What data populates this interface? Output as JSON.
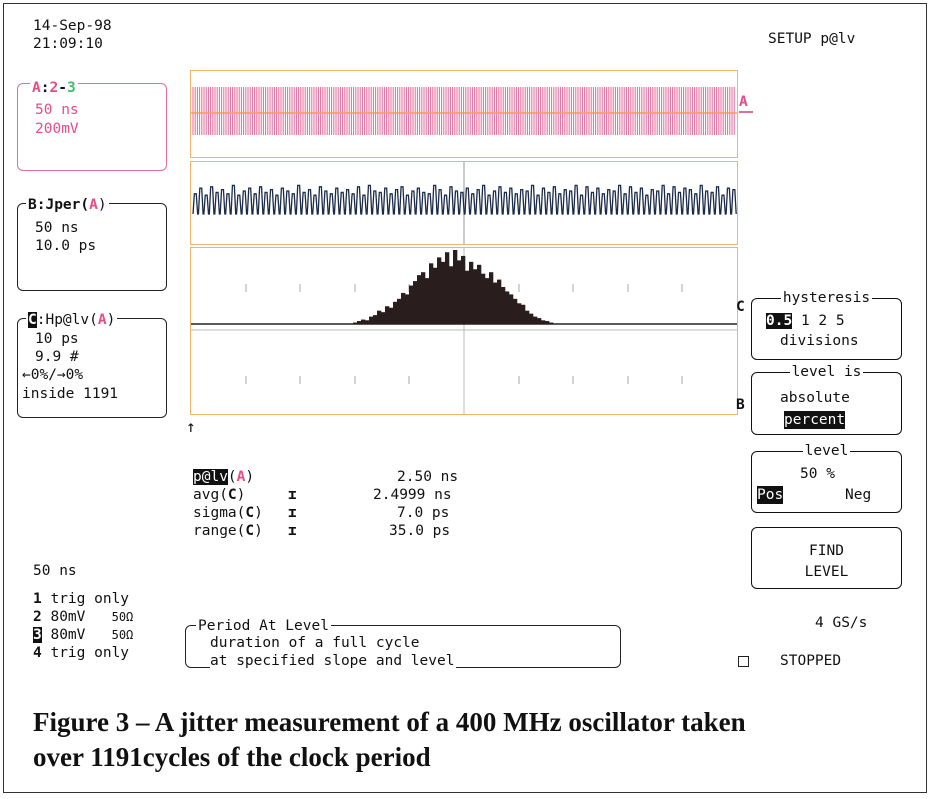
{
  "header": {
    "date": "14-Sep-98",
    "time": "21:09:10",
    "setup_label": "SETUP p@lv"
  },
  "trace_a": {
    "title_a": "A",
    "title_2": "2",
    "title_3": "3",
    "timebase": "50 ns",
    "volts": "200mV",
    "marker": "A"
  },
  "trace_b": {
    "title": "B:Jper(",
    "src": "A",
    "close": ")",
    "timebase": "50 ns",
    "scale": "10.0 ps",
    "marker": "B"
  },
  "trace_c": {
    "title_letter": "C",
    "title": ":Hp@lv(",
    "src": "A",
    "close": ")",
    "bin": "10 ps",
    "count": "9.9 #",
    "overflow": "←0%/→0%",
    "inside": "inside 1191",
    "marker": "C"
  },
  "measurements": {
    "p_label": "p@lv",
    "p_src": "A",
    "p_value": "2.50 ns",
    "rows": [
      {
        "label": "avg(",
        "src": "C",
        "value": "2.4999 ns"
      },
      {
        "label": "sigma(",
        "src": "C",
        "value": "7.0 ps"
      },
      {
        "label": "range(",
        "src": "C",
        "value": "35.0 ps"
      }
    ]
  },
  "timebase": "50 ns",
  "channels": [
    {
      "num": "1",
      "text": "trig only"
    },
    {
      "num": "2",
      "text": "80mV",
      "imp": "50Ω"
    },
    {
      "num": "3",
      "text": "80mV",
      "imp": "50Ω"
    },
    {
      "num": "4",
      "text": "trig only"
    }
  ],
  "help_box": {
    "title": "Period At Level",
    "line1": "duration of a full cycle",
    "line2": "at specified slope and level"
  },
  "softkeys": {
    "hysteresis": {
      "title": "hysteresis",
      "selected": "0.5",
      "options": "1 2 5",
      "unit": "divisions"
    },
    "level_is": {
      "title": "level is",
      "opt1": "absolute",
      "opt2": "percent"
    },
    "level": {
      "title": "level",
      "value": "50 %",
      "pos": "Pos",
      "neg": "Neg"
    },
    "find_level": {
      "line1": "FIND",
      "line2": "LEVEL"
    }
  },
  "sample_rate": "4 GS/s",
  "status": "STOPPED",
  "caption_line1": "Figure 3 – A jitter measurement of a 400 MHz oscillator taken",
  "caption_line2": "over 1191cycles of the clock period",
  "histogram_bins": [
    0.02,
    0.04,
    0.06,
    0.05,
    0.1,
    0.12,
    0.18,
    0.16,
    0.24,
    0.22,
    0.3,
    0.34,
    0.42,
    0.4,
    0.52,
    0.58,
    0.66,
    0.7,
    0.62,
    0.82,
    0.76,
    0.9,
    0.84,
    0.97,
    0.78,
    1.0,
    0.86,
    0.92,
    0.72,
    0.84,
    0.74,
    0.8,
    0.68,
    0.62,
    0.7,
    0.56,
    0.6,
    0.5,
    0.44,
    0.4,
    0.34,
    0.28,
    0.26,
    0.18,
    0.14,
    0.1,
    0.08,
    0.05,
    0.04,
    0.02
  ],
  "jitter_trace": [
    0.3,
    0.7,
    0.2,
    0.8,
    0.4,
    0.6,
    0.3,
    0.9,
    0.2,
    0.5,
    0.7,
    0.3,
    0.8,
    0.4,
    0.6,
    0.2,
    0.7,
    0.5,
    0.3,
    0.9,
    0.4,
    0.6,
    0.2,
    0.8,
    0.5,
    0.3,
    0.7,
    0.4,
    0.6,
    0.3,
    0.8,
    0.2,
    0.9,
    0.5,
    0.4,
    0.7,
    0.3,
    0.6,
    0.8,
    0.2,
    0.5,
    0.7,
    0.4,
    0.3,
    0.9,
    0.6,
    0.2,
    0.8,
    0.5,
    0.4,
    0.7,
    0.3,
    0.6,
    0.9,
    0.2,
    0.5,
    0.8,
    0.4,
    0.7,
    0.3,
    0.6,
    0.5,
    0.9,
    0.2,
    0.7,
    0.4,
    0.8,
    0.3,
    0.6,
    0.5,
    0.9,
    0.2,
    0.8,
    0.4,
    0.7,
    0.3,
    0.6,
    0.5,
    0.9,
    0.3,
    0.8,
    0.4,
    0.7,
    0.2,
    0.6,
    0.5,
    0.9,
    0.3,
    0.8,
    0.4,
    0.7,
    0.6,
    0.3,
    0.9,
    0.5,
    0.4,
    0.8,
    0.2,
    0.7,
    0.6
  ]
}
